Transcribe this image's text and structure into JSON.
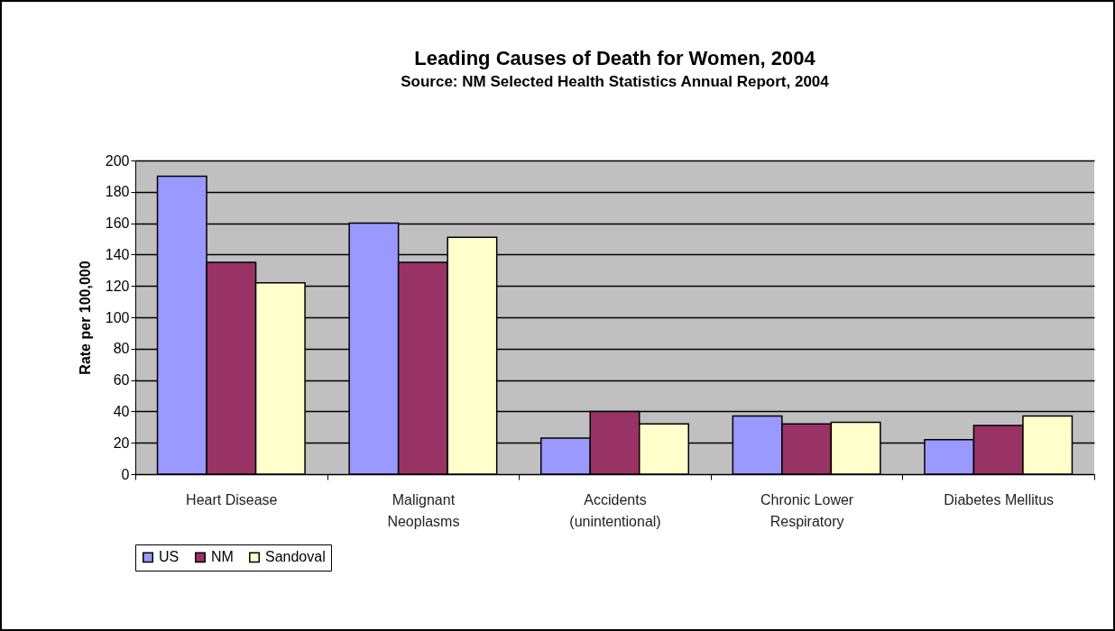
{
  "chart_data": {
    "type": "bar",
    "title": "Leading Causes of Death for Women, 2004",
    "subtitle": "Source:  NM Selected Health Statistics Annual Report, 2004",
    "ylabel": "Rate per 100,000",
    "categories": [
      "Heart Disease",
      "Malignant\nNeoplasms",
      "Accidents\n(unintentional)",
      "Chronic Lower\nRespiratory",
      "Diabetes Mellitus"
    ],
    "series": [
      {
        "name": "US",
        "color": "#9999ff",
        "values": [
          190,
          160,
          23,
          37,
          22
        ]
      },
      {
        "name": "NM",
        "color": "#993366",
        "values": [
          135,
          135,
          40,
          32,
          31
        ]
      },
      {
        "name": "Sandoval",
        "color": "#ffffcc",
        "values": [
          122,
          151,
          32,
          33,
          37
        ]
      }
    ],
    "ylim": [
      0,
      200
    ],
    "yticks": [
      0,
      20,
      40,
      60,
      80,
      100,
      120,
      140,
      160,
      180,
      200
    ],
    "grid": "y",
    "legend": "bottom"
  }
}
